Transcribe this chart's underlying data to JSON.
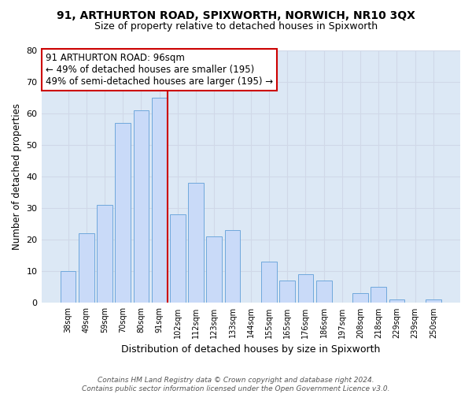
{
  "title": "91, ARTHURTON ROAD, SPIXWORTH, NORWICH, NR10 3QX",
  "subtitle": "Size of property relative to detached houses in Spixworth",
  "xlabel": "Distribution of detached houses by size in Spixworth",
  "ylabel": "Number of detached properties",
  "bar_labels": [
    "38sqm",
    "49sqm",
    "59sqm",
    "70sqm",
    "80sqm",
    "91sqm",
    "102sqm",
    "112sqm",
    "123sqm",
    "133sqm",
    "144sqm",
    "155sqm",
    "165sqm",
    "176sqm",
    "186sqm",
    "197sqm",
    "208sqm",
    "218sqm",
    "229sqm",
    "239sqm",
    "250sqm"
  ],
  "bar_values": [
    10,
    22,
    31,
    57,
    61,
    65,
    28,
    38,
    21,
    23,
    0,
    13,
    7,
    9,
    7,
    0,
    3,
    5,
    1,
    0,
    1
  ],
  "bar_color": "#c9daf8",
  "bar_edge_color": "#6fa8dc",
  "highlight_index": 5,
  "highlight_color": "#cc0000",
  "ylim": [
    0,
    80
  ],
  "yticks": [
    0,
    10,
    20,
    30,
    40,
    50,
    60,
    70,
    80
  ],
  "annotation_title": "91 ARTHURTON ROAD: 96sqm",
  "annotation_line1": "← 49% of detached houses are smaller (195)",
  "annotation_line2": "49% of semi-detached houses are larger (195) →",
  "footer_line1": "Contains HM Land Registry data © Crown copyright and database right 2024.",
  "footer_line2": "Contains public sector information licensed under the Open Government Licence v3.0.",
  "bg_color": "#ffffff",
  "grid_color": "#d0d8e8",
  "plot_bg_color": "#dce8f5"
}
